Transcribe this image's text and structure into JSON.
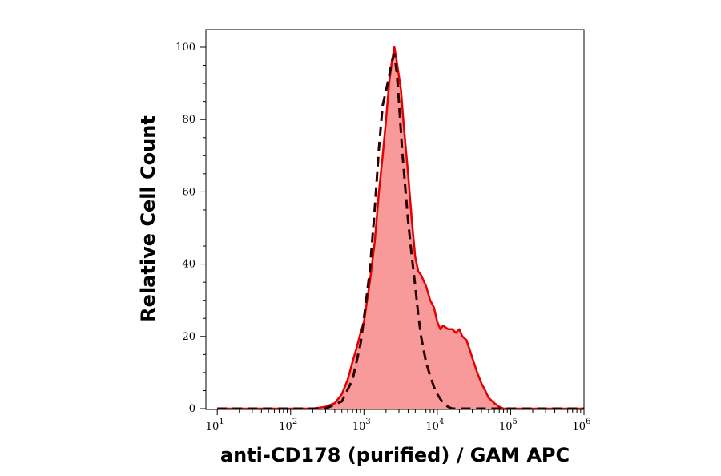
{
  "chart_data": {
    "type": "area",
    "title": "",
    "xlabel": "anti-CD178 (purified) / GAM APC",
    "ylabel": "Relative Cell Count",
    "x_scale": "log",
    "x_ticks": [
      {
        "base": "10",
        "exp": "1",
        "value": 10
      },
      {
        "base": "10",
        "exp": "2",
        "value": 100
      },
      {
        "base": "10",
        "exp": "3",
        "value": 1000
      },
      {
        "base": "10",
        "exp": "4",
        "value": 10000
      },
      {
        "base": "10",
        "exp": "5",
        "value": 100000
      },
      {
        "base": "10",
        "exp": "6",
        "value": 1000000
      }
    ],
    "y_ticks": [
      "0",
      "20",
      "40",
      "60",
      "80",
      "100"
    ],
    "xlim": [
      7,
      1000000
    ],
    "ylim": [
      0,
      100
    ],
    "grid": false,
    "legend": "none",
    "series": [
      {
        "style": "filled-solid",
        "color": "#e50000",
        "fill": "#f99a9a",
        "x": [
          10,
          200,
          300,
          400,
          500,
          600,
          700,
          800,
          900,
          1000,
          1200,
          1400,
          1600,
          1800,
          2000,
          2200,
          2400,
          2600,
          2700,
          2800,
          3000,
          3200,
          3500,
          4000,
          4500,
          5000,
          5500,
          6000,
          7000,
          8000,
          9000,
          10000,
          11000,
          12000,
          14000,
          16000,
          18000,
          20000,
          22000,
          25000,
          28000,
          30000,
          35000,
          40000,
          45000,
          50000,
          60000,
          70000,
          80000,
          100000,
          1000000
        ],
        "y": [
          0,
          0,
          0.5,
          1.5,
          4,
          8,
          13,
          17,
          21,
          24,
          35,
          46,
          60,
          70,
          80,
          90,
          96,
          100,
          98,
          96,
          92,
          88,
          78,
          65,
          52,
          42,
          38,
          37,
          34,
          30,
          28,
          24,
          22,
          23,
          22,
          22,
          21,
          22,
          20,
          19,
          16,
          14,
          10,
          7,
          5,
          3,
          1.5,
          0.5,
          0,
          0,
          0
        ]
      },
      {
        "style": "dashed",
        "color": "#2a0000",
        "x": [
          10,
          300,
          500,
          700,
          900,
          1000,
          1200,
          1400,
          1600,
          1800,
          2000,
          2200,
          2400,
          2600,
          2800,
          3000,
          3300,
          3700,
          4000,
          4500,
          5000,
          5500,
          6000,
          7000,
          8000,
          9000,
          10000,
          12000,
          14000,
          16000,
          20000,
          30000,
          1000000
        ],
        "y": [
          0,
          0,
          2,
          8,
          18,
          25,
          38,
          55,
          72,
          84,
          88,
          92,
          96,
          98,
          93,
          85,
          72,
          60,
          52,
          42,
          34,
          26,
          20,
          13,
          9,
          6,
          4,
          1.5,
          0.5,
          0,
          0,
          0,
          0
        ]
      }
    ]
  }
}
